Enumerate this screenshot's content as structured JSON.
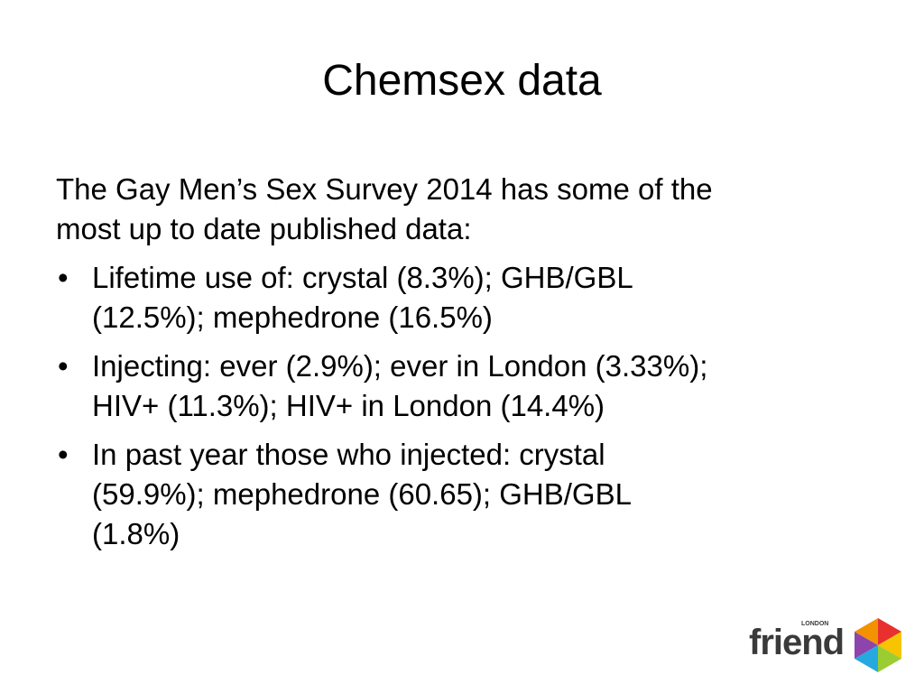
{
  "title": "Chemsex data",
  "intro": [
    "The Gay Men’s Sex Survey 2014 has some of the",
    "most up to date published data:"
  ],
  "bullets": [
    [
      "Lifetime use of: crystal (8.3%); GHB/GBL",
      "(12.5%); mephedrone (16.5%)"
    ],
    [
      "Injecting: ever (2.9%); ever in London (3.33%);",
      "HIV+ (11.3%); HIV+ in London (14.4%)"
    ],
    [
      "In past year those who injected: crystal",
      "(59.9%); mephedrone (60.65); GHB/GBL",
      "(1.8%)"
    ]
  ],
  "logo": {
    "name": "friend",
    "tag": "LONDON"
  }
}
